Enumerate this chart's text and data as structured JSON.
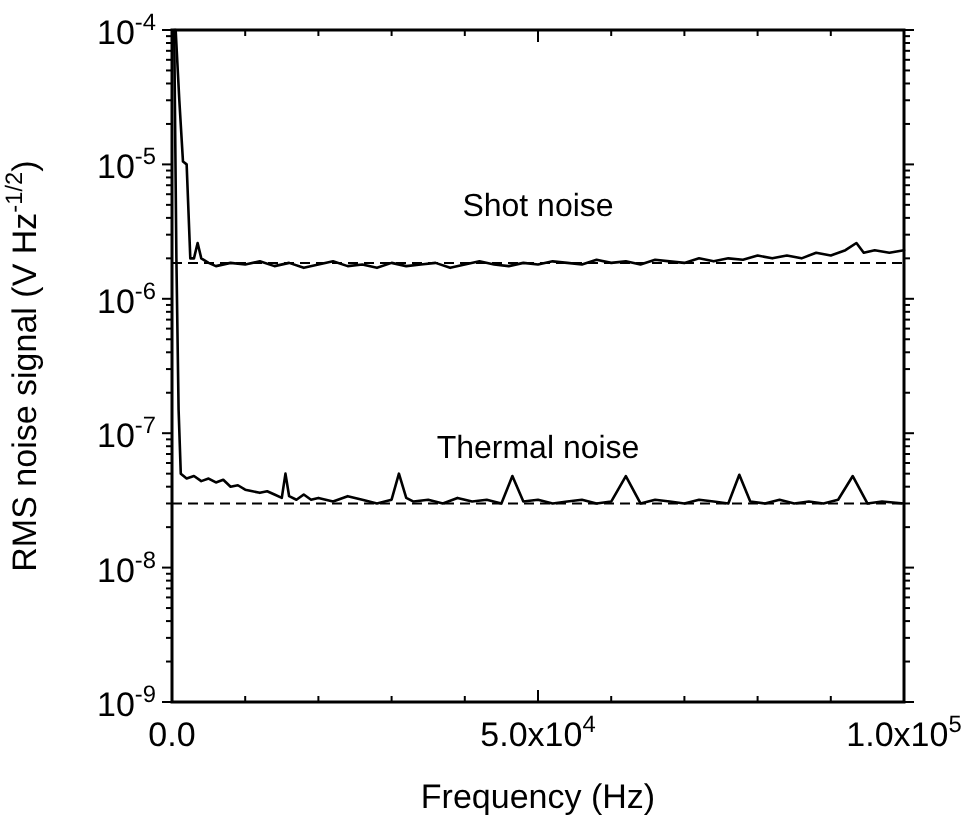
{
  "chart_data": {
    "type": "line",
    "xlabel": "Frequency (Hz)",
    "ylabel": "RMS noise signal (V Hz$^{-1/2}$)",
    "log": "y",
    "grid": false,
    "marker": "none",
    "line_style": "solid",
    "xlim": [
      0,
      100000
    ],
    "ylim": [
      1e-09,
      0.0001
    ],
    "xticks": [
      {
        "value": 0,
        "label": "0.0"
      },
      {
        "value": 10000,
        "label": null
      },
      {
        "value": 20000,
        "label": null
      },
      {
        "value": 30000,
        "label": null
      },
      {
        "value": 40000,
        "label": null
      },
      {
        "value": 50000,
        "label": "5.0x10$^{4}$"
      },
      {
        "value": 60000,
        "label": null
      },
      {
        "value": 70000,
        "label": null
      },
      {
        "value": 80000,
        "label": null
      },
      {
        "value": 90000,
        "label": null
      },
      {
        "value": 100000,
        "label": "1.0x10$^{5}$"
      }
    ],
    "yticks": [
      {
        "value": 1e-09,
        "label": "10$^{-9}$"
      },
      {
        "value": 1e-08,
        "label": "10$^{-8}$"
      },
      {
        "value": 1e-07,
        "label": "10$^{-7}$"
      },
      {
        "value": 1e-06,
        "label": "10$^{-6}$"
      },
      {
        "value": 1e-05,
        "label": "10$^{-5}$"
      },
      {
        "value": 0.0001,
        "label": "10$^{-4}$"
      }
    ],
    "ref_lines": [
      {
        "axis": "y",
        "value": 1.85e-06,
        "color": "#000000",
        "line_style": "dashed"
      },
      {
        "axis": "y",
        "value": 3e-08,
        "color": "#000000",
        "line_style": "dashed"
      }
    ],
    "series": [
      {
        "name": "Shot noise",
        "color": "#000000",
        "x": [
          500,
          1000,
          1500,
          2000,
          2500,
          3000,
          3500,
          4000,
          5000,
          6000,
          8000,
          10000,
          12000,
          14000,
          16000,
          18000,
          20000,
          22000,
          24000,
          26000,
          28000,
          30000,
          32000,
          34000,
          36000,
          38000,
          40000,
          42000,
          44000,
          46000,
          48000,
          50000,
          52000,
          54000,
          56000,
          58000,
          60000,
          62000,
          64000,
          66000,
          68000,
          70000,
          72000,
          74000,
          76000,
          78000,
          80000,
          82000,
          84000,
          86000,
          88000,
          90000,
          92000,
          93500,
          94500,
          96000,
          98000,
          100000
        ],
        "values": [
          0.0001,
          3e-05,
          1.05e-05,
          1e-05,
          2e-06,
          2e-06,
          2.6e-06,
          2e-06,
          1.85e-06,
          1.75e-06,
          1.85e-06,
          1.8e-06,
          1.9e-06,
          1.75e-06,
          1.85e-06,
          1.7e-06,
          1.8e-06,
          1.9e-06,
          1.75e-06,
          1.8e-06,
          1.7e-06,
          1.85e-06,
          1.75e-06,
          1.8e-06,
          1.85e-06,
          1.7e-06,
          1.8e-06,
          1.9e-06,
          1.8e-06,
          1.75e-06,
          1.85e-06,
          1.8e-06,
          1.9e-06,
          1.85e-06,
          1.8e-06,
          1.95e-06,
          1.85e-06,
          1.9e-06,
          1.8e-06,
          1.95e-06,
          1.9e-06,
          1.85e-06,
          2e-06,
          1.9e-06,
          2e-06,
          1.95e-06,
          2.1e-06,
          2e-06,
          2.1e-06,
          2e-06,
          2.2e-06,
          2.1e-06,
          2.3e-06,
          2.6e-06,
          2.2e-06,
          2.3e-06,
          2.2e-06,
          2.3e-06
        ]
      },
      {
        "name": "Thermal noise",
        "color": "#000000",
        "x": [
          300,
          600,
          900,
          1200,
          2000,
          3000,
          4000,
          5000,
          6000,
          7000,
          8000,
          9000,
          10000,
          11000,
          12000,
          13000,
          14000,
          15000,
          15500,
          16000,
          17000,
          18000,
          19000,
          20000,
          22000,
          24000,
          26000,
          28000,
          30000,
          31000,
          32000,
          33000,
          35000,
          37000,
          39000,
          41000,
          43000,
          45000,
          46500,
          48000,
          50000,
          52000,
          54000,
          56000,
          58000,
          60000,
          62000,
          64000,
          66000,
          68000,
          70000,
          72000,
          74000,
          76000,
          77500,
          79000,
          81000,
          83000,
          85000,
          87000,
          89000,
          91000,
          93000,
          95000,
          97000,
          100000
        ],
        "values": [
          0.0001,
          2e-06,
          1.5e-07,
          5e-08,
          4.6e-08,
          4.8e-08,
          4.4e-08,
          4.6e-08,
          4.3e-08,
          4.5e-08,
          4e-08,
          4.1e-08,
          3.8e-08,
          3.7e-08,
          3.6e-08,
          3.7e-08,
          3.5e-08,
          3.3e-08,
          5e-08,
          3.4e-08,
          3.2e-08,
          3.5e-08,
          3.2e-08,
          3.3e-08,
          3.1e-08,
          3.4e-08,
          3.2e-08,
          3e-08,
          3.2e-08,
          5e-08,
          3.3e-08,
          3.1e-08,
          3.2e-08,
          3e-08,
          3.3e-08,
          3.1e-08,
          3.2e-08,
          3e-08,
          4.8e-08,
          3.1e-08,
          3.2e-08,
          3e-08,
          3.1e-08,
          3.2e-08,
          3e-08,
          3.1e-08,
          4.8e-08,
          3e-08,
          3.2e-08,
          3.1e-08,
          3e-08,
          3.2e-08,
          3.1e-08,
          3e-08,
          4.9e-08,
          3.1e-08,
          3e-08,
          3.2e-08,
          3e-08,
          3.1e-08,
          3e-08,
          3.2e-08,
          4.8e-08,
          3e-08,
          3.1e-08,
          3e-08
        ]
      }
    ]
  }
}
